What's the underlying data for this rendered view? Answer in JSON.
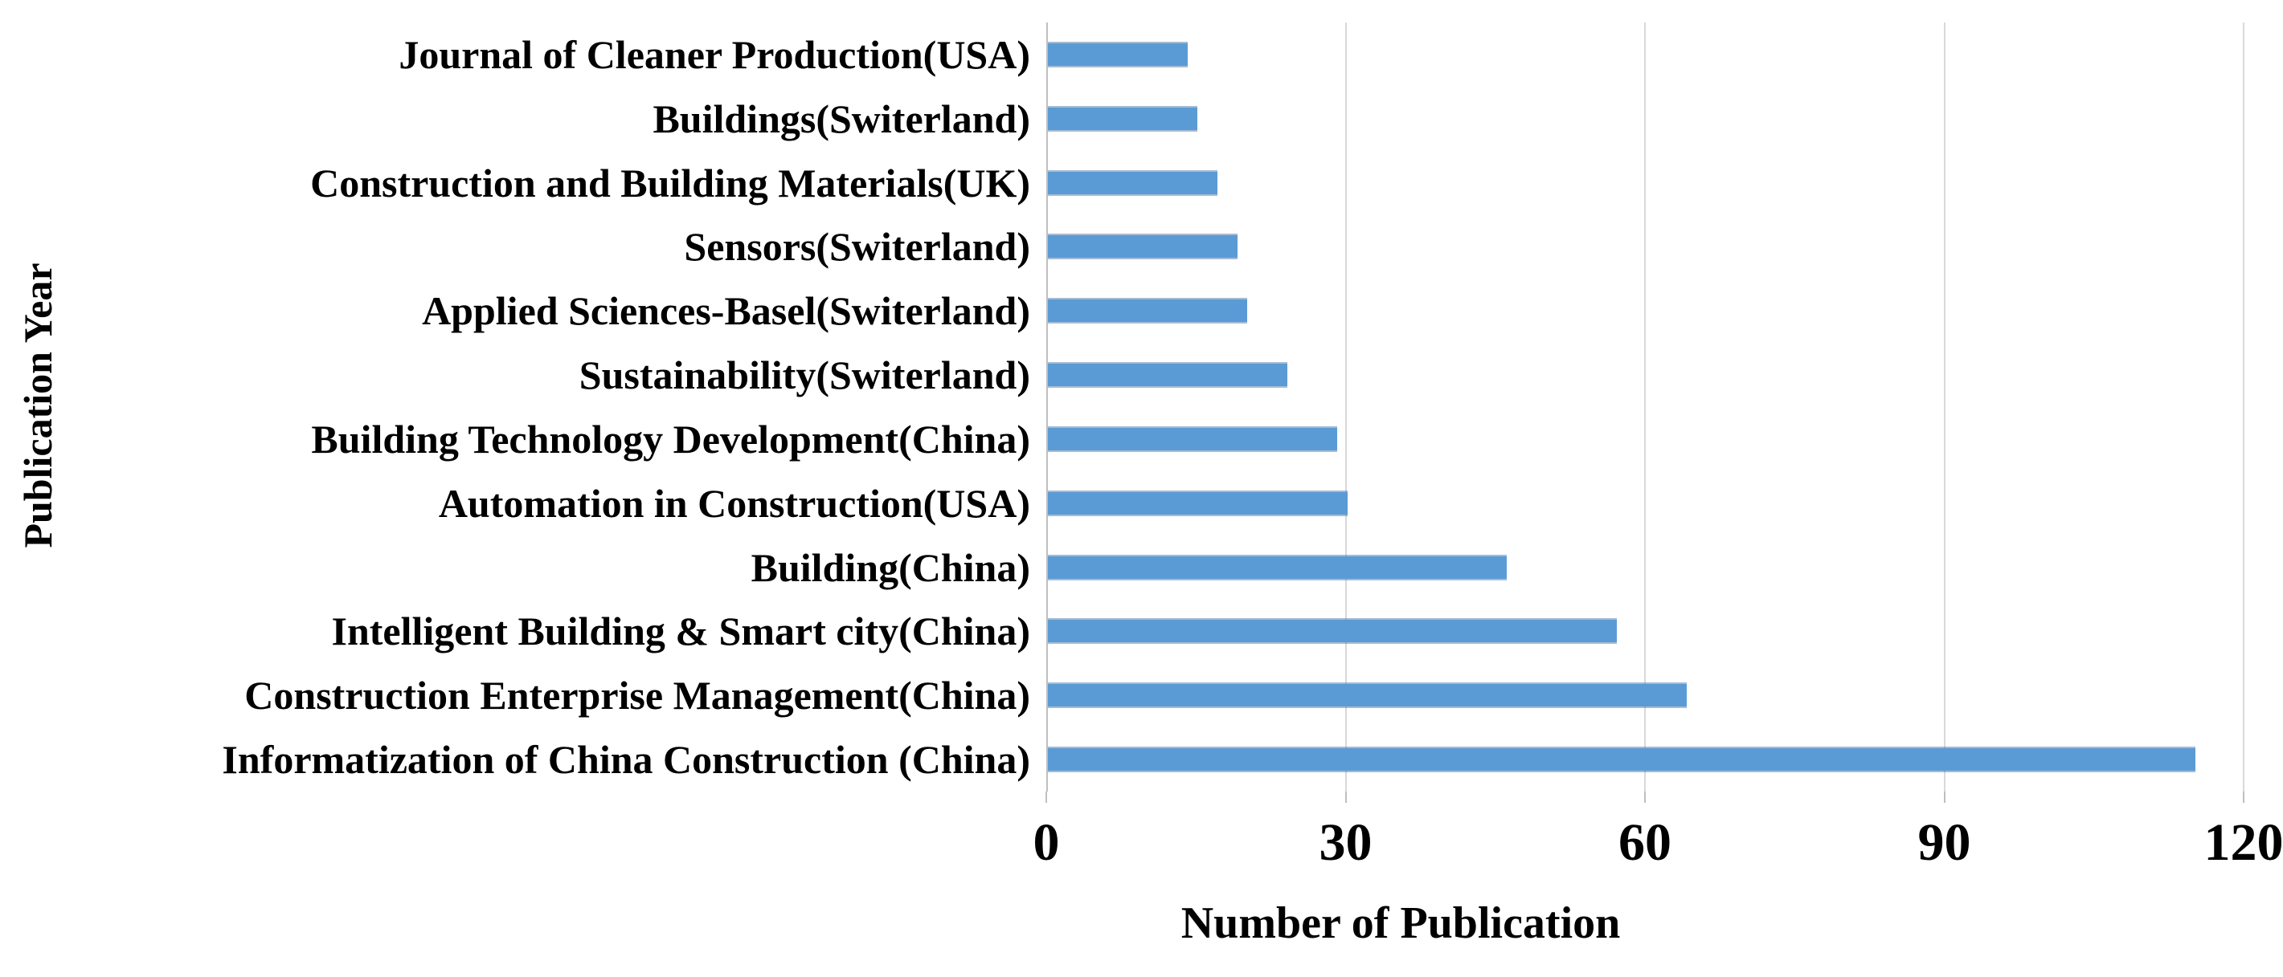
{
  "chart_data": {
    "type": "bar",
    "orientation": "horizontal",
    "title": "",
    "xlabel": "Number of Publication",
    "ylabel": "Publication Year",
    "categories": [
      "Journal of Cleaner Production(USA)",
      "Buildings(Switerland)",
      "Construction and Building Materials(UK)",
      "Sensors(Switerland)",
      "Applied Sciences-Basel(Switerland)",
      "Sustainability(Switerland)",
      "Building Technology Development(China)",
      "Automation in Construction(USA)",
      "Building(China)",
      "Intelligent Building & Smart city(China)",
      "Construction Enterprise Management(China)",
      "Informatization of China Construction (China)"
    ],
    "values": [
      14,
      15,
      17,
      19,
      20,
      24,
      29,
      30,
      46,
      57,
      64,
      115
    ],
    "xticks": [
      0,
      30,
      60,
      90,
      120
    ],
    "xlim": [
      0,
      120
    ],
    "grid": true,
    "legend": "none",
    "bar_color": "#5b9bd5",
    "gridline_color": "#d9d9d9",
    "axis_color": "#bfbfbf",
    "text_color": "#000000"
  }
}
